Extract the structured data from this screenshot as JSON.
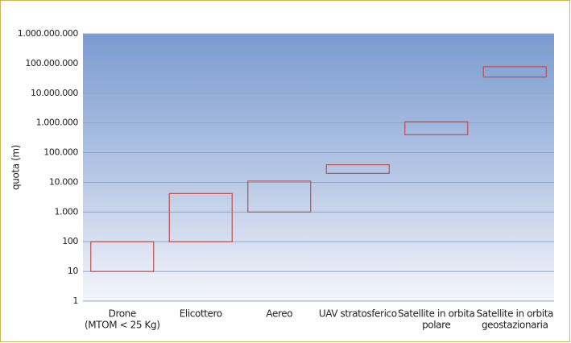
{
  "chart_data": {
    "type": "range_bar",
    "y_label": "quota (m)",
    "categories": [
      [
        "Drone",
        "(MTOM < 25 Kg)"
      ],
      [
        "Elicottero"
      ],
      [
        "Aereo"
      ],
      [
        "UAV stratosferico"
      ],
      [
        "Satellite in orbita",
        "polare"
      ],
      [
        "Satellite in orbita",
        "geostazionaria"
      ]
    ],
    "low": [
      10,
      100,
      1000,
      20000,
      400000,
      35000000
    ],
    "high": [
      100,
      4200,
      11000,
      39000,
      1100000,
      78000000
    ],
    "color": "#c0504d",
    "log_scale": true,
    "grid": true,
    "ylim": [
      1,
      1000000000
    ],
    "yticks": [
      1,
      10,
      100,
      {
        "value": 1000,
        "label": "1.000"
      },
      {
        "value": 10000,
        "label": "10.000"
      },
      {
        "value": 100000,
        "label": "100.000"
      },
      {
        "value": 1000000,
        "label": "1.000.000"
      },
      {
        "value": 10000000,
        "label": "10.000.000"
      },
      {
        "value": 100000000,
        "label": "100.000.000"
      },
      {
        "value": 1000000000,
        "label": "1.000.000.000"
      }
    ]
  }
}
